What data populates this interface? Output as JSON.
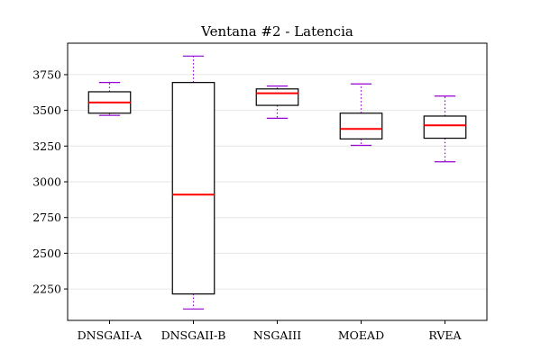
{
  "chart_data": {
    "type": "box",
    "title": "Ventana #2 - Latencia",
    "xlabel": "",
    "ylabel": "",
    "categories": [
      "DNSGAII-A",
      "DNSGAII-B",
      "NSGAIII",
      "MOEAD",
      "RVEA"
    ],
    "ylim": [
      2030,
      3970
    ],
    "yticks": [
      2250,
      2500,
      2750,
      3000,
      3250,
      3500,
      3750
    ],
    "grid": true,
    "boxes": [
      {
        "name": "DNSGAII-A",
        "whislo": 3465,
        "q1": 3480,
        "med": 3555,
        "q3": 3630,
        "whishi": 3695
      },
      {
        "name": "DNSGAII-B",
        "whislo": 2110,
        "q1": 2215,
        "med": 2910,
        "q3": 3695,
        "whishi": 3880
      },
      {
        "name": "NSGAIII",
        "whislo": 3445,
        "q1": 3535,
        "med": 3620,
        "q3": 3650,
        "whishi": 3670
      },
      {
        "name": "MOEAD",
        "whislo": 3255,
        "q1": 3300,
        "med": 3370,
        "q3": 3480,
        "whishi": 3685
      },
      {
        "name": "RVEA",
        "whislo": 3140,
        "q1": 3305,
        "med": 3395,
        "q3": 3460,
        "whishi": 3600
      }
    ],
    "colors": {
      "box": "#000000",
      "median": "#ff0000",
      "whisker": "#9400d3",
      "grid": "#e6e6e6"
    }
  }
}
